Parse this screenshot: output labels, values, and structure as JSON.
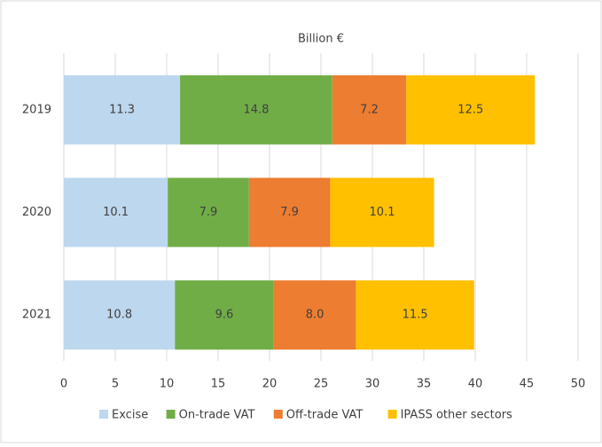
{
  "chart_data": {
    "type": "bar",
    "orientation": "horizontal",
    "stacked": true,
    "title": "Billion €",
    "categories": [
      "2019",
      "2020",
      "2021"
    ],
    "series": [
      {
        "name": "Excise",
        "color": "#bdd7ee",
        "values": [
          11.3,
          10.1,
          10.8
        ]
      },
      {
        "name": "On-trade VAT",
        "color": "#70ad47",
        "values": [
          14.8,
          7.9,
          9.6
        ]
      },
      {
        "name": "Off-trade VAT",
        "color": "#ed7d31",
        "values": [
          7.2,
          7.9,
          8.0
        ],
        "value_labels": [
          "7.2",
          "7.9",
          "8.0"
        ]
      },
      {
        "name": "IPASS other sectors",
        "color": "#ffc000",
        "values": [
          12.5,
          10.1,
          11.5
        ]
      }
    ],
    "xlim": [
      0,
      50
    ],
    "xticks": [
      0,
      5,
      10,
      15,
      20,
      25,
      30,
      35,
      40,
      45,
      50
    ],
    "grid": true,
    "legend": "bottom"
  }
}
